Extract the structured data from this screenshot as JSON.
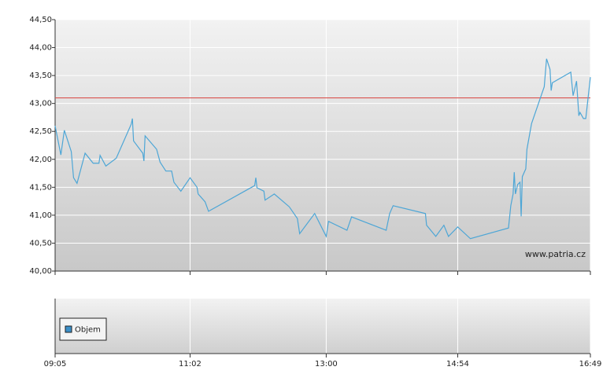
{
  "chart_data": [
    {
      "type": "line",
      "x": [
        545,
        550,
        553,
        559,
        561,
        564,
        571,
        578,
        583,
        584,
        589,
        598,
        611,
        612,
        613,
        621,
        622,
        623,
        633,
        636,
        641,
        646,
        648,
        654,
        662,
        668,
        669,
        675,
        678,
        718,
        719,
        720,
        726,
        727,
        735,
        748,
        755,
        757,
        770,
        780,
        782,
        798,
        802,
        832,
        835,
        838,
        866,
        867,
        875,
        882,
        886,
        894,
        905,
        938,
        940,
        942,
        943,
        944,
        946,
        948,
        949,
        950,
        953,
        954,
        958,
        969,
        971,
        974,
        975,
        976,
        992,
        994,
        997,
        999,
        1000,
        1003,
        1005,
        1009
      ],
      "values": [
        42.6,
        42.08,
        42.52,
        42.14,
        41.67,
        41.57,
        42.11,
        41.93,
        41.93,
        42.07,
        41.88,
        42.02,
        42.63,
        42.73,
        42.33,
        42.11,
        41.97,
        42.42,
        42.18,
        41.95,
        41.79,
        41.79,
        41.59,
        41.43,
        41.67,
        41.5,
        41.38,
        41.24,
        41.07,
        41.53,
        41.67,
        41.49,
        41.43,
        41.27,
        41.38,
        41.15,
        40.94,
        40.67,
        41.03,
        40.62,
        40.89,
        40.73,
        40.97,
        40.73,
        41.03,
        41.17,
        41.03,
        40.82,
        40.62,
        40.82,
        40.62,
        40.79,
        40.58,
        40.77,
        41.17,
        41.38,
        41.77,
        41.38,
        41.55,
        41.59,
        40.98,
        41.69,
        41.83,
        42.18,
        42.64,
        43.3,
        43.8,
        43.61,
        43.23,
        43.37,
        43.56,
        43.14,
        43.4,
        42.78,
        42.84,
        42.73,
        42.73,
        43.47
      ],
      "color": "#4da6d6",
      "xlim": [
        545,
        1009
      ],
      "xticks": [
        {
          "value": 545,
          "label": "09:05"
        },
        {
          "value": 662,
          "label": "11:02"
        },
        {
          "value": 780,
          "label": "13:00"
        },
        {
          "value": 894,
          "label": "14:54"
        },
        {
          "value": 1009,
          "label": "16:49"
        }
      ],
      "ylim": [
        40,
        44.5
      ],
      "yticks": [
        {
          "value": 40,
          "label": "40,00"
        },
        {
          "value": 40.5,
          "label": "40,50"
        },
        {
          "value": 41,
          "label": "41,00"
        },
        {
          "value": 41.5,
          "label": "41,50"
        },
        {
          "value": 42,
          "label": "42,00"
        },
        {
          "value": 42.5,
          "label": "42,50"
        },
        {
          "value": 43,
          "label": "43,00"
        },
        {
          "value": 43.5,
          "label": "43,50"
        },
        {
          "value": 44,
          "label": "44,00"
        },
        {
          "value": 44.5,
          "label": "44,50"
        }
      ],
      "grid": true,
      "reference_line": 43.1,
      "reference_color": "#d9534f",
      "watermark": "www.patria.cz"
    },
    {
      "type": "bar",
      "series": [
        {
          "name": "Objem",
          "color": "#3b8fc8",
          "values": []
        }
      ]
    }
  ]
}
